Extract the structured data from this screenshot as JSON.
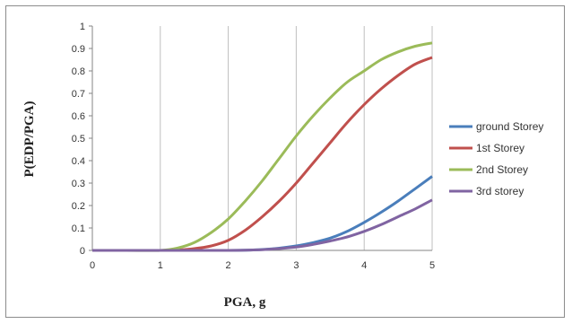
{
  "chart_data": {
    "type": "line",
    "xlabel": "PGA, g",
    "ylabel": "P(EDP/PGA)",
    "xlim": [
      0,
      5
    ],
    "ylim": [
      0,
      1
    ],
    "xticks": [
      "0",
      "1",
      "2",
      "3",
      "4",
      "5"
    ],
    "yticks": [
      "0",
      "0.1",
      "0.2",
      "0.3",
      "0.4",
      "0.5",
      "0.6",
      "0.7",
      "0.8",
      "0.9",
      "1"
    ],
    "grid": "vertical",
    "legend": "right",
    "x": [
      0,
      0.5,
      1,
      1.25,
      1.5,
      1.75,
      2,
      2.25,
      2.5,
      2.75,
      3,
      3.25,
      3.5,
      3.75,
      4,
      4.25,
      4.5,
      4.75,
      5
    ],
    "series": [
      {
        "name": "ground Storey",
        "color": "#4a7ebb",
        "values": [
          0,
          0,
          0,
          0,
          0,
          0,
          0,
          0.001,
          0.004,
          0.01,
          0.02,
          0.035,
          0.055,
          0.085,
          0.125,
          0.17,
          0.22,
          0.275,
          0.33
        ]
      },
      {
        "name": "1st Storey",
        "color": "#c0504d",
        "values": [
          0,
          0,
          0,
          0.002,
          0.008,
          0.02,
          0.045,
          0.09,
          0.15,
          0.22,
          0.3,
          0.39,
          0.48,
          0.57,
          0.65,
          0.72,
          0.78,
          0.83,
          0.86
        ]
      },
      {
        "name": "2nd Storey",
        "color": "#9bbb59",
        "values": [
          0,
          0,
          0,
          0.01,
          0.035,
          0.08,
          0.14,
          0.22,
          0.31,
          0.41,
          0.51,
          0.6,
          0.68,
          0.75,
          0.8,
          0.85,
          0.885,
          0.91,
          0.925
        ]
      },
      {
        "name": "3rd storey",
        "color": "#8064a2",
        "values": [
          0,
          0,
          0,
          0,
          0,
          0,
          0,
          0.001,
          0.003,
          0.008,
          0.015,
          0.027,
          0.042,
          0.06,
          0.085,
          0.115,
          0.15,
          0.185,
          0.225
        ]
      }
    ]
  }
}
